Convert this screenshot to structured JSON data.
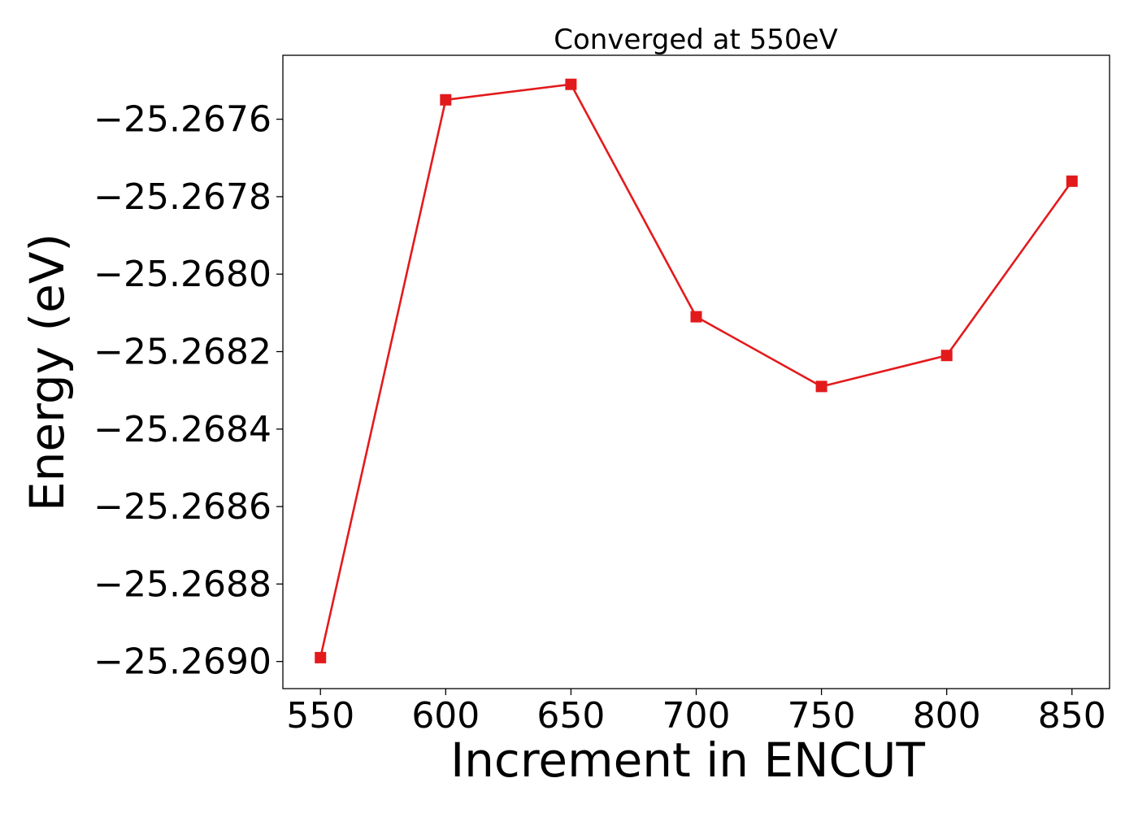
{
  "chart_data": {
    "type": "line",
    "title": "Converged at 550eV",
    "xlabel": "Increment in ENCUT",
    "ylabel": "Energy (eV)",
    "x": [
      550,
      600,
      650,
      700,
      750,
      800,
      850
    ],
    "series": [
      {
        "values": [
          -25.26899,
          -25.26755,
          -25.26751,
          -25.26811,
          -25.26829,
          -25.26821,
          -25.26776
        ],
        "color": "#e31a1c",
        "marker": "square"
      }
    ],
    "xticks": [
      550,
      600,
      650,
      700,
      750,
      800,
      850
    ],
    "xtick_labels": [
      "550",
      "600",
      "650",
      "700",
      "750",
      "800",
      "850"
    ],
    "yticks": [
      -25.2676,
      -25.2678,
      -25.268,
      -25.2682,
      -25.2684,
      -25.2686,
      -25.2688,
      -25.269
    ],
    "ytick_labels": [
      "−25.2676",
      "−25.2678",
      "−25.2680",
      "−25.2682",
      "−25.2684",
      "−25.2686",
      "−25.2688",
      "−25.2690"
    ],
    "xlim": [
      535,
      865
    ],
    "ylim": [
      -25.26907,
      -25.267435
    ],
    "grid": false,
    "legend": false
  }
}
